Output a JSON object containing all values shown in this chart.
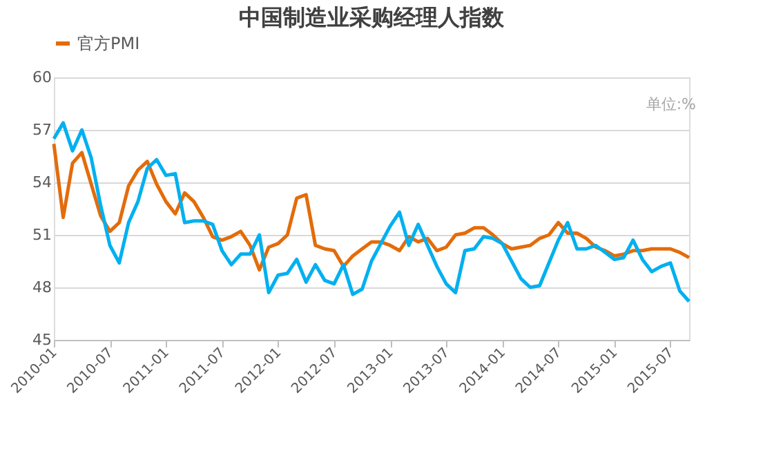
{
  "chart_data": {
    "type": "line",
    "title": "中国制造业采购经理人指数",
    "categories": [
      "2010-01",
      null,
      null,
      null,
      null,
      null,
      "2010-07",
      null,
      null,
      null,
      null,
      null,
      "2011-01",
      null,
      null,
      null,
      null,
      null,
      "2011-07",
      null,
      null,
      null,
      null,
      null,
      "2012-01",
      null,
      null,
      null,
      null,
      null,
      "2012-07",
      null,
      null,
      null,
      null,
      null,
      "2013-01",
      null,
      null,
      null,
      null,
      null,
      "2013-07",
      null,
      null,
      null,
      null,
      null,
      "2014-01",
      null,
      null,
      null,
      null,
      null,
      "2014-07",
      null,
      null,
      null,
      null,
      null,
      "2015-01",
      null,
      null,
      null,
      null,
      null,
      "2015-07",
      null,
      null
    ],
    "series": [
      {
        "name": "官方PMI",
        "color": "#e36c0a",
        "values": [
          56.2,
          52.0,
          55.1,
          55.7,
          53.9,
          52.1,
          51.2,
          51.7,
          53.8,
          54.7,
          55.2,
          53.9,
          52.9,
          52.2,
          53.4,
          52.9,
          52.0,
          50.9,
          50.7,
          50.9,
          51.2,
          50.4,
          49.0,
          50.3,
          50.5,
          51.0,
          53.1,
          53.3,
          50.4,
          50.2,
          50.1,
          49.2,
          49.8,
          50.2,
          50.6,
          50.6,
          50.4,
          50.1,
          50.9,
          50.6,
          50.8,
          50.1,
          50.3,
          51.0,
          51.1,
          51.4,
          51.4,
          51.0,
          50.5,
          50.2,
          50.3,
          50.4,
          50.8,
          51.0,
          51.7,
          51.1,
          51.1,
          50.8,
          50.3,
          50.1,
          49.8,
          49.9,
          50.1,
          50.1,
          50.2,
          50.2,
          50.2,
          50.0,
          49.7
        ]
      },
      {
        "color": "#00b0f0",
        "values": [
          56.5,
          57.4,
          55.8,
          57.0,
          55.4,
          52.7,
          50.4,
          49.4,
          51.7,
          52.9,
          54.8,
          55.3,
          54.4,
          54.5,
          51.7,
          51.8,
          51.8,
          51.6,
          50.1,
          49.3,
          49.9,
          49.9,
          51.0,
          47.7,
          48.7,
          48.8,
          49.6,
          48.3,
          49.3,
          48.4,
          48.2,
          49.3,
          47.6,
          47.9,
          49.5,
          50.5,
          51.5,
          52.3,
          50.4,
          51.6,
          50.4,
          49.2,
          48.2,
          47.7,
          50.1,
          50.2,
          50.9,
          50.8,
          50.5,
          49.5,
          48.5,
          48.0,
          48.1,
          49.4,
          50.7,
          51.7,
          50.2,
          50.2,
          50.4,
          50.0,
          49.6,
          49.7,
          50.7,
          49.6,
          48.9,
          49.2,
          49.4,
          47.8,
          47.2
        ]
      }
    ],
    "ylim": [
      45,
      60
    ],
    "yticks": [
      45,
      48,
      51,
      54,
      57,
      60
    ],
    "grid": "y",
    "legend": "top",
    "annotations": [
      "单位:%"
    ]
  }
}
